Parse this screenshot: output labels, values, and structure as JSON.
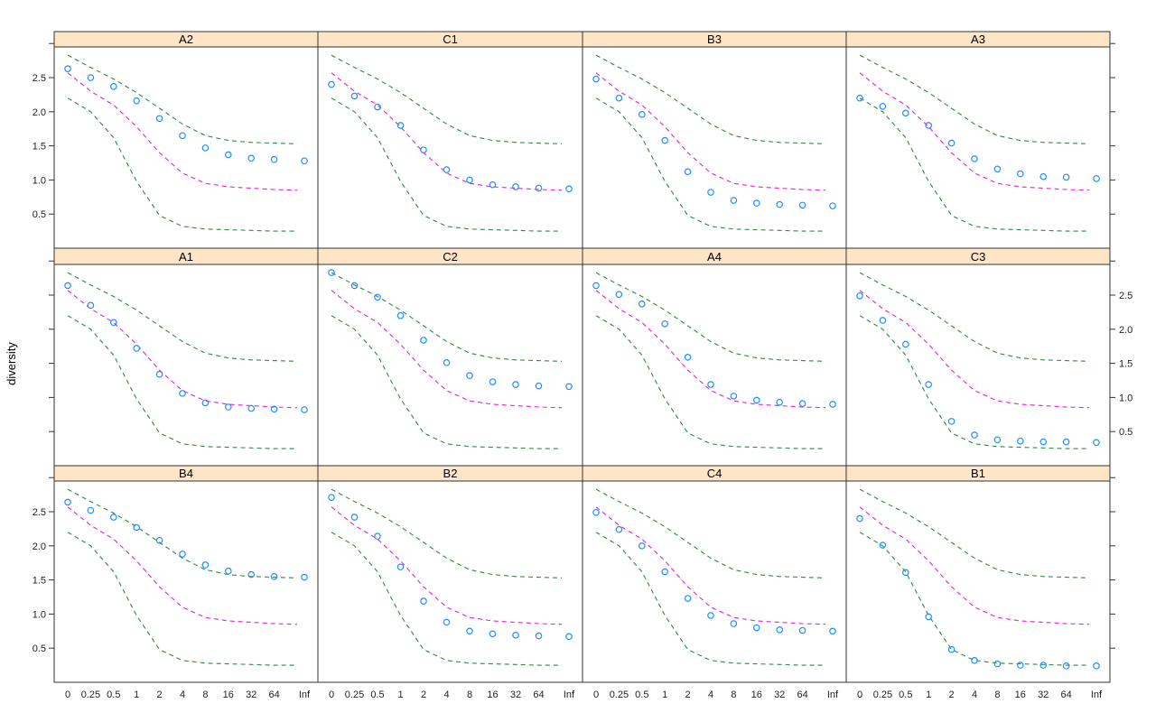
{
  "chart_data": {
    "type": "scatter",
    "title": "",
    "xlabel": "",
    "ylabel": "diversity",
    "x_categories": [
      "0",
      "0.25",
      "0.5",
      "1",
      "2",
      "4",
      "8",
      "16",
      "32",
      "64",
      "Inf"
    ],
    "y_ticks": [
      0.5,
      1.0,
      1.5,
      2.0,
      2.5
    ],
    "y_tick_labels": [
      "0.5",
      "1.0",
      "1.5",
      "2.0",
      "2.5"
    ],
    "ylim": [
      0.0,
      2.95
    ],
    "grid": false,
    "layout": {
      "rows": 3,
      "cols": 4
    },
    "reference_lines": {
      "upper": {
        "name": "upper envelope",
        "color": "#2e8b3e",
        "style": "dashed",
        "values": [
          2.83,
          2.65,
          2.48,
          2.28,
          2.05,
          1.82,
          1.65,
          1.58,
          1.55,
          1.54,
          1.53
        ]
      },
      "middle": {
        "name": "expected",
        "color": "#e020e0",
        "style": "dashed",
        "values": [
          2.57,
          2.3,
          2.1,
          1.78,
          1.4,
          1.1,
          0.95,
          0.9,
          0.88,
          0.86,
          0.85
        ]
      },
      "lower": {
        "name": "lower envelope",
        "color": "#2e8b3e",
        "style": "dashed",
        "values": [
          2.2,
          2.0,
          1.62,
          0.98,
          0.48,
          0.32,
          0.28,
          0.27,
          0.26,
          0.25,
          0.25
        ]
      }
    },
    "point_color": "#1f8fff",
    "panels": [
      {
        "name": "A2",
        "values": [
          2.63,
          2.5,
          2.37,
          2.16,
          1.9,
          1.65,
          1.47,
          1.37,
          1.32,
          1.3,
          1.28
        ]
      },
      {
        "name": "C1",
        "values": [
          2.4,
          2.23,
          2.07,
          1.8,
          1.44,
          1.15,
          1.0,
          0.93,
          0.9,
          0.88,
          0.87
        ]
      },
      {
        "name": "B3",
        "values": [
          2.48,
          2.2,
          1.96,
          1.58,
          1.12,
          0.82,
          0.7,
          0.66,
          0.64,
          0.63,
          0.62
        ]
      },
      {
        "name": "A3",
        "values": [
          2.2,
          2.08,
          1.98,
          1.8,
          1.54,
          1.31,
          1.16,
          1.09,
          1.05,
          1.04,
          1.02
        ]
      },
      {
        "name": "A1",
        "values": [
          2.64,
          2.35,
          2.1,
          1.72,
          1.34,
          1.06,
          0.92,
          0.86,
          0.84,
          0.83,
          0.82
        ]
      },
      {
        "name": "C2",
        "values": [
          2.83,
          2.64,
          2.47,
          2.2,
          1.84,
          1.51,
          1.32,
          1.23,
          1.19,
          1.17,
          1.16
        ]
      },
      {
        "name": "A4",
        "values": [
          2.64,
          2.51,
          2.37,
          2.08,
          1.59,
          1.19,
          1.02,
          0.96,
          0.93,
          0.91,
          0.9
        ]
      },
      {
        "name": "C3",
        "values": [
          2.49,
          2.13,
          1.78,
          1.19,
          0.65,
          0.45,
          0.38,
          0.36,
          0.35,
          0.35,
          0.34
        ]
      },
      {
        "name": "B4",
        "values": [
          2.64,
          2.52,
          2.42,
          2.27,
          2.08,
          1.88,
          1.72,
          1.63,
          1.58,
          1.55,
          1.54
        ]
      },
      {
        "name": "B2",
        "values": [
          2.71,
          2.42,
          2.14,
          1.69,
          1.19,
          0.88,
          0.75,
          0.71,
          0.69,
          0.68,
          0.67
        ]
      },
      {
        "name": "C4",
        "values": [
          2.49,
          2.24,
          2.0,
          1.62,
          1.23,
          0.98,
          0.86,
          0.8,
          0.77,
          0.76,
          0.75
        ]
      },
      {
        "name": "B1",
        "values": [
          2.4,
          2.01,
          1.61,
          0.96,
          0.48,
          0.32,
          0.27,
          0.25,
          0.25,
          0.24,
          0.24
        ]
      }
    ]
  },
  "colors": {
    "strip_bg": "#ffe5c7",
    "frame": "#333333",
    "envelope": "#2e8b3e",
    "expected": "#e020e0",
    "points": "#1f8fff"
  }
}
